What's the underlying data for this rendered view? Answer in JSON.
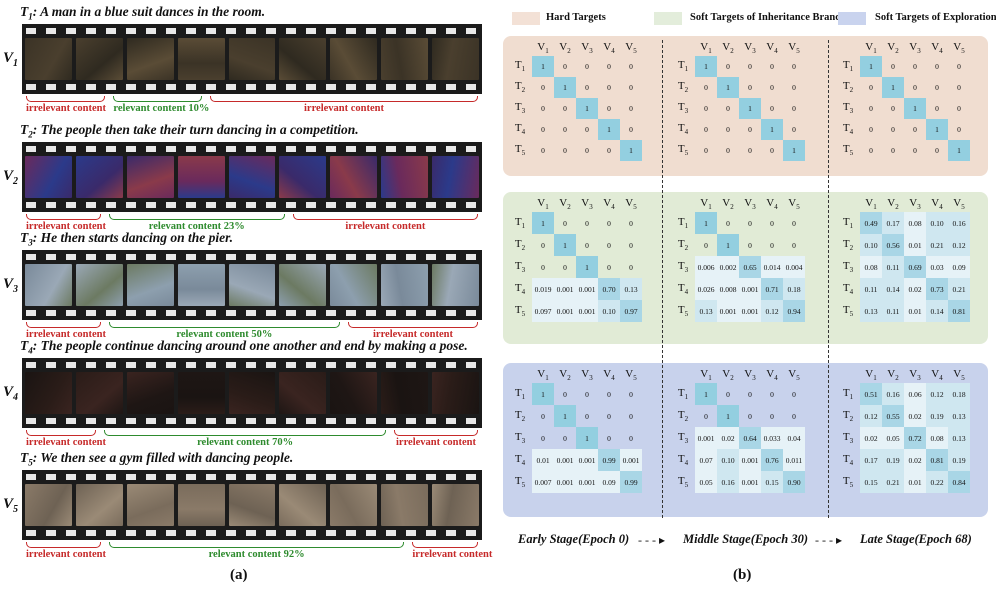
{
  "panel_a": {
    "videos": [
      {
        "t_label": "T",
        "t_sub": "1",
        "caption": ": A man in a blue suit dances in the room.",
        "v_label": "V",
        "v_sub": "1",
        "segments": [
          {
            "text": "irrelevant content",
            "kind": "irrelevant"
          },
          {
            "text": "relevant content 10%",
            "kind": "relevant"
          },
          {
            "text": "irrelevant content",
            "kind": "irrelevant"
          }
        ]
      },
      {
        "t_label": "T",
        "t_sub": "2",
        "caption": ": The people then take their turn dancing in a competition.",
        "v_label": "V",
        "v_sub": "2",
        "segments": [
          {
            "text": "irrelevant content",
            "kind": "irrelevant"
          },
          {
            "text": "relevant content 23%",
            "kind": "relevant"
          },
          {
            "text": "irrelevant content",
            "kind": "irrelevant"
          }
        ]
      },
      {
        "t_label": "T",
        "t_sub": "3",
        "caption": ": He then starts dancing on the pier.",
        "v_label": "V",
        "v_sub": "3",
        "segments": [
          {
            "text": "irrelevant content",
            "kind": "irrelevant"
          },
          {
            "text": "relevant content 50%",
            "kind": "relevant"
          },
          {
            "text": "irrelevant content",
            "kind": "irrelevant"
          }
        ]
      },
      {
        "t_label": "T",
        "t_sub": "4",
        "caption": ": The people continue dancing around one another and end by making a pose.",
        "v_label": "V",
        "v_sub": "4",
        "segments": [
          {
            "text": "irrelevant content",
            "kind": "irrelevant"
          },
          {
            "text": "relevant content 70%",
            "kind": "relevant"
          },
          {
            "text": "irrelevant content",
            "kind": "irrelevant"
          }
        ]
      },
      {
        "t_label": "T",
        "t_sub": "5",
        "caption": ": We then see a gym filled with dancing people.",
        "v_label": "V",
        "v_sub": "5",
        "segments": [
          {
            "text": "irrelevant content",
            "kind": "irrelevant"
          },
          {
            "text": "relevant content 92%",
            "kind": "relevant"
          },
          {
            "text": "irrelevant content",
            "kind": "irrelevant"
          }
        ]
      }
    ],
    "fig_label": "(a)"
  },
  "panel_b": {
    "legend": [
      {
        "label": "Hard Targets",
        "color": "#f3e1d6"
      },
      {
        "label": "Soft Targets of Inheritance Branch",
        "color": "#e3eddb"
      },
      {
        "label": "Soft Targets of Exploration Branch",
        "color": "#c9d3ee"
      }
    ],
    "col_headers": [
      "V",
      "V",
      "V",
      "V",
      "V"
    ],
    "col_subs": [
      "1",
      "2",
      "3",
      "4",
      "5"
    ],
    "row_headers": [
      "T",
      "T",
      "T",
      "T",
      "T"
    ],
    "row_subs": [
      "1",
      "2",
      "3",
      "4",
      "5"
    ],
    "panels": [
      {
        "name": "hard",
        "color": "#f0ddd0",
        "matrices": [
          [
            [
              "1",
              "0",
              "0",
              "0",
              "0"
            ],
            [
              "0",
              "1",
              "0",
              "0",
              "0"
            ],
            [
              "0",
              "0",
              "1",
              "0",
              "0"
            ],
            [
              "0",
              "0",
              "0",
              "1",
              "0"
            ],
            [
              "0",
              "0",
              "0",
              "0",
              "1"
            ]
          ],
          [
            [
              "1",
              "0",
              "0",
              "0",
              "0"
            ],
            [
              "0",
              "1",
              "0",
              "0",
              "0"
            ],
            [
              "0",
              "0",
              "1",
              "0",
              "0"
            ],
            [
              "0",
              "0",
              "0",
              "1",
              "0"
            ],
            [
              "0",
              "0",
              "0",
              "0",
              "1"
            ]
          ],
          [
            [
              "1",
              "0",
              "0",
              "0",
              "0"
            ],
            [
              "0",
              "1",
              "0",
              "0",
              "0"
            ],
            [
              "0",
              "0",
              "1",
              "0",
              "0"
            ],
            [
              "0",
              "0",
              "0",
              "1",
              "0"
            ],
            [
              "0",
              "0",
              "0",
              "0",
              "1"
            ]
          ]
        ]
      },
      {
        "name": "inheritance",
        "color": "#e1ebd6",
        "matrices": [
          [
            [
              "1",
              "0",
              "0",
              "0",
              "0"
            ],
            [
              "0",
              "1",
              "0",
              "0",
              "0"
            ],
            [
              "0",
              "0",
              "1",
              "0",
              "0"
            ],
            [
              "0.019",
              "0.001",
              "0.001",
              "0.70",
              "0.13"
            ],
            [
              "0.097",
              "0.001",
              "0.001",
              "0.10",
              "0.97"
            ]
          ],
          [
            [
              "1",
              "0",
              "0",
              "0",
              "0"
            ],
            [
              "0",
              "1",
              "0",
              "0",
              "0"
            ],
            [
              "0.006",
              "0.002",
              "0.65",
              "0.014",
              "0.004"
            ],
            [
              "0.026",
              "0.008",
              "0.001",
              "0.71",
              "0.18"
            ],
            [
              "0.13",
              "0.001",
              "0.001",
              "0.12",
              "0.94"
            ]
          ],
          [
            [
              "0.49",
              "0.17",
              "0.08",
              "0.10",
              "0.16"
            ],
            [
              "0.10",
              "0.56",
              "0.01",
              "0.21",
              "0.12"
            ],
            [
              "0.08",
              "0.11",
              "0.69",
              "0.03",
              "0.09"
            ],
            [
              "0.11",
              "0.14",
              "0.02",
              "0.73",
              "0.21"
            ],
            [
              "0.13",
              "0.11",
              "0.01",
              "0.14",
              "0.81"
            ]
          ]
        ]
      },
      {
        "name": "exploration",
        "color": "#c8d2ec",
        "matrices": [
          [
            [
              "1",
              "0",
              "0",
              "0",
              "0"
            ],
            [
              "0",
              "1",
              "0",
              "0",
              "0"
            ],
            [
              "0",
              "0",
              "1",
              "0",
              "0"
            ],
            [
              "0.01",
              "0.001",
              "0.001",
              "0.99",
              "0.001"
            ],
            [
              "0.007",
              "0.001",
              "0.001",
              "0.09",
              "0.99"
            ]
          ],
          [
            [
              "1",
              "0",
              "0",
              "0",
              "0"
            ],
            [
              "0",
              "1",
              "0",
              "0",
              "0"
            ],
            [
              "0.001",
              "0.02",
              "0.64",
              "0.033",
              "0.04"
            ],
            [
              "0.07",
              "0.10",
              "0.001",
              "0.76",
              "0.011"
            ],
            [
              "0.05",
              "0.16",
              "0.001",
              "0.15",
              "0.90"
            ]
          ],
          [
            [
              "0.51",
              "0.16",
              "0.06",
              "0.12",
              "0.18"
            ],
            [
              "0.12",
              "0.55",
              "0.02",
              "0.19",
              "0.13"
            ],
            [
              "0.02",
              "0.05",
              "0.72",
              "0.08",
              "0.13"
            ],
            [
              "0.17",
              "0.19",
              "0.02",
              "0.81",
              "0.19"
            ],
            [
              "0.15",
              "0.21",
              "0.01",
              "0.22",
              "0.84"
            ]
          ]
        ]
      }
    ],
    "stages": [
      "Early Stage(Epoch 0)",
      "Middle Stage(Epoch 30)",
      "Late Stage(Epoch 68)"
    ],
    "arrow": "- - - ▸",
    "fig_label": "(b)"
  }
}
